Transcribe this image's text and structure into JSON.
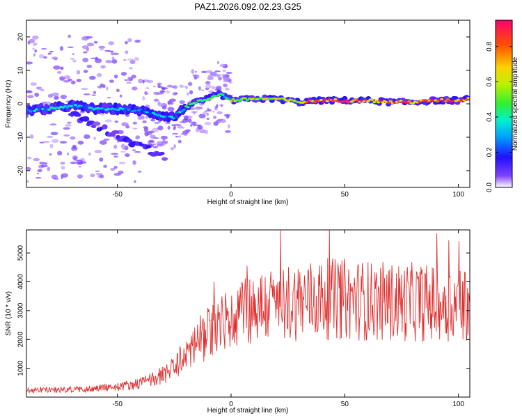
{
  "figure": {
    "title": "PAZ1.2026.092.02.23.G25"
  },
  "chart_data": [
    {
      "type": "heatmap",
      "title": "PAZ1.2026.092.02.23.G25",
      "xlabel": "Height of straight line (km)",
      "ylabel": "Frequency (Hz)",
      "xlim": [
        -90,
        105
      ],
      "ylim": [
        -25,
        25
      ],
      "xticks": [
        -50,
        0,
        50,
        100
      ],
      "yticks": [
        -20,
        -10,
        0,
        10,
        20
      ],
      "ridge": {
        "x": [
          -90,
          -80,
          -70,
          -60,
          -50,
          -40,
          -30,
          -25,
          -20,
          -15,
          -10,
          -5,
          0,
          10,
          20,
          30,
          40,
          50,
          60,
          70,
          80,
          90,
          100,
          105
        ],
        "frequency_hz": [
          -2,
          -1.5,
          -0.5,
          -1.5,
          -1.5,
          -2,
          -3.5,
          -4,
          -1,
          0.5,
          1.5,
          3,
          1,
          1.5,
          1.5,
          0.5,
          1,
          1,
          1,
          0.5,
          0.5,
          1,
          1,
          1.5
        ]
      },
      "colorbar": {
        "label": "Normalized spectral amplitude",
        "range": [
          0,
          0.95
        ],
        "ticks": [
          0.0,
          0.2,
          0.4,
          0.6,
          0.8
        ]
      }
    },
    {
      "type": "line",
      "xlabel": "Height of straight line (km)",
      "ylabel": "SNR (10 * v/v)",
      "xlim": [
        -90,
        105
      ],
      "ylim": [
        0,
        5800
      ],
      "xticks": [
        -50,
        0,
        50,
        100
      ],
      "yticks": [
        1000,
        2000,
        3000,
        4000,
        5000
      ],
      "color": "#e03030",
      "series": [
        {
          "name": "SNR",
          "x": [
            -90,
            -80,
            -70,
            -60,
            -50,
            -40,
            -35,
            -30,
            -25,
            -20,
            -15,
            -10,
            -5,
            0,
            5,
            10,
            20,
            30,
            40,
            50,
            60,
            70,
            80,
            90,
            100,
            105
          ],
          "envelope": [
            250,
            250,
            260,
            300,
            360,
            480,
            620,
            760,
            1000,
            1500,
            1900,
            2250,
            2500,
            2700,
            2950,
            3100,
            3250,
            3350,
            3400,
            3400,
            3350,
            3300,
            3300,
            3250,
            3250,
            3300
          ]
        }
      ]
    }
  ]
}
